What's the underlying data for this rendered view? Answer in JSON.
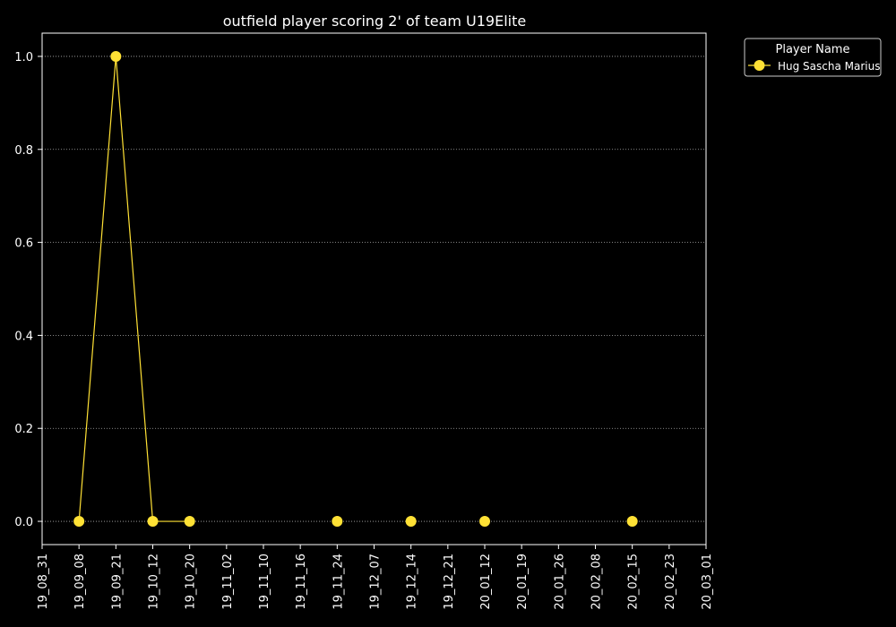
{
  "chart_data": {
    "type": "line",
    "title": "outfield player scoring 2' of team U19Elite",
    "xlabel": "",
    "ylabel": "",
    "x_ticks": [
      "19_08_31",
      "19_09_08",
      "19_09_21",
      "19_10_12",
      "19_10_20",
      "19_11_02",
      "19_11_10",
      "19_11_16",
      "19_11_24",
      "19_12_07",
      "19_12_14",
      "19_12_21",
      "20_01_12",
      "20_01_19",
      "20_01_26",
      "20_02_08",
      "20_02_15",
      "20_02_23",
      "20_03_01"
    ],
    "y_ticks": [
      "0.0",
      "0.2",
      "0.4",
      "0.6",
      "0.8",
      "1.0"
    ],
    "ylim": [
      -0.05,
      1.05
    ],
    "grid": "horizontal dotted",
    "legend": {
      "title": "Player Name",
      "placement": "outside top-right"
    },
    "series": [
      {
        "name": "Hug Sascha Marius",
        "color": "#ffe135",
        "x": [
          "19_09_08",
          "19_09_21",
          "19_10_12",
          "19_10_20",
          "19_11_24",
          "19_12_14",
          "20_01_12",
          "20_02_15"
        ],
        "values": [
          0,
          1,
          0,
          0,
          0,
          0,
          0,
          0
        ],
        "connected": [
          true,
          true,
          true,
          true,
          false,
          false,
          false,
          false
        ]
      }
    ]
  }
}
